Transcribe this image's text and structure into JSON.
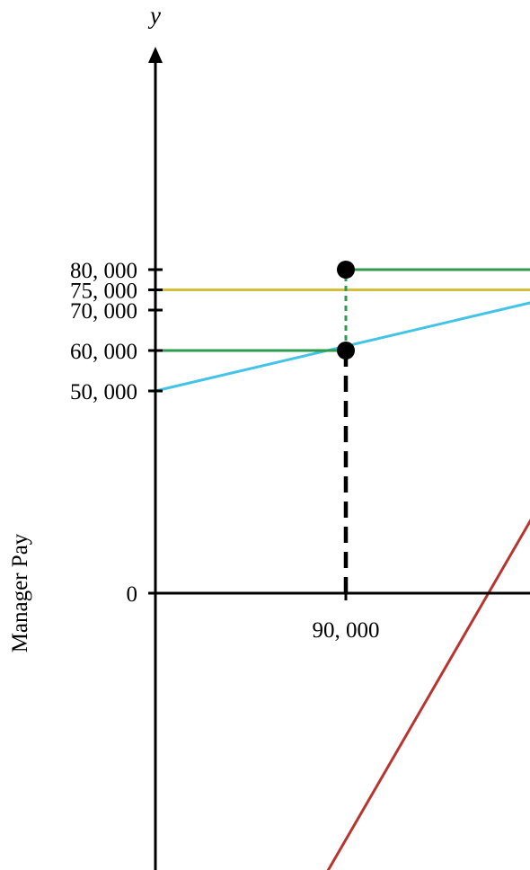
{
  "chart_data": {
    "type": "line",
    "title": "",
    "xlabel": "",
    "ylabel": "Manager Pay",
    "y_symbol": "y",
    "xlim": [
      0,
      195000
    ],
    "ylim": [
      -70000,
      115000
    ],
    "x_ticks": [
      {
        "value": 90000,
        "label": "90, 000"
      }
    ],
    "y_ticks": [
      {
        "value": 0,
        "label": "0"
      },
      {
        "value": 50000,
        "label": "50, 000"
      },
      {
        "value": 60000,
        "label": "60, 000"
      },
      {
        "value": 70000,
        "label": "70, 000"
      },
      {
        "value": 75000,
        "label": "75, 000"
      },
      {
        "value": 80000,
        "label": "80, 000"
      }
    ],
    "grid": false,
    "legend": "none",
    "colors": {
      "axis": "#000000",
      "yellow": "#D4BE3A",
      "blue": "#43C4E6",
      "green": "#2E9A4D",
      "red": "#B9342E",
      "reference": "#000000"
    },
    "series": [
      {
        "color": "#D4BE3A",
        "style": "solid",
        "points": [
          [
            0,
            75000
          ],
          [
            195000,
            75000
          ]
        ]
      },
      {
        "color": "#43C4E6",
        "style": "solid",
        "points": [
          [
            0,
            50000
          ],
          [
            195000,
            74000
          ]
        ]
      },
      {
        "color": "#2E9A4D",
        "style": "solid",
        "points": [
          [
            0,
            60000
          ],
          [
            90000,
            60000
          ]
        ]
      },
      {
        "color": "#2E9A4D",
        "style": "dashed",
        "points": [
          [
            90000,
            60000
          ],
          [
            90000,
            80000
          ]
        ]
      },
      {
        "color": "#2E9A4D",
        "style": "solid",
        "points": [
          [
            90000,
            80000
          ],
          [
            195000,
            80000
          ]
        ]
      },
      {
        "color": "#B9342E",
        "style": "solid",
        "points": [
          [
            80000,
            -70000
          ],
          [
            195000,
            34000
          ]
        ]
      },
      {
        "color": "#000000",
        "style": "dashed-thick",
        "points": [
          [
            90000,
            0
          ],
          [
            90000,
            60000
          ]
        ]
      }
    ],
    "markers": [
      {
        "x": 90000,
        "y": 80000,
        "color": "#000000"
      },
      {
        "x": 90000,
        "y": 60000,
        "color": "#000000"
      }
    ]
  }
}
